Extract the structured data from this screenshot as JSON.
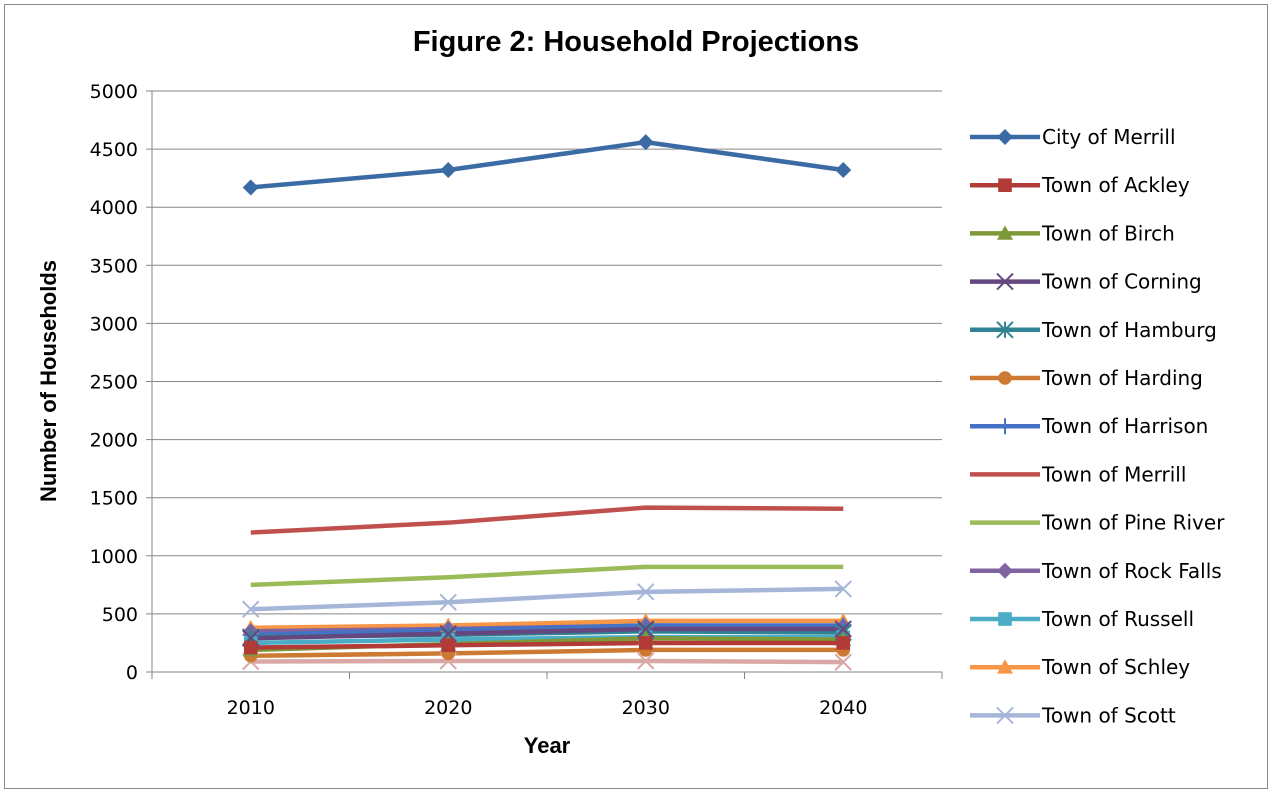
{
  "chart_data": {
    "type": "line",
    "title": "Figure 2:  Household Projections",
    "xlabel": "Year",
    "ylabel": "Number of Households",
    "categories": [
      "2010",
      "2020",
      "2030",
      "2040"
    ],
    "ylim": [
      0,
      5000
    ],
    "yticks": [
      0,
      500,
      1000,
      1500,
      2000,
      2500,
      3000,
      3500,
      4000,
      4500,
      5000
    ],
    "grid": "horizontal",
    "legend_position": "right",
    "series": [
      {
        "name": "City of Merrill",
        "values": [
          4170,
          4320,
          4560,
          4320
        ],
        "color": "#3A6BA5",
        "marker": "diamond"
      },
      {
        "name": "Town of Ackley",
        "values": [
          210,
          230,
          250,
          250
        ],
        "color": "#B23B38",
        "marker": "square"
      },
      {
        "name": "Town of Birch",
        "values": [
          190,
          240,
          290,
          280
        ],
        "color": "#7E9A38",
        "marker": "triangle"
      },
      {
        "name": "Town of Corning",
        "values": [
          290,
          330,
          370,
          370
        ],
        "color": "#63477E",
        "marker": "x"
      },
      {
        "name": "Town of Hamburg",
        "values": [
          300,
          320,
          350,
          340
        ],
        "color": "#2F8393",
        "marker": "star"
      },
      {
        "name": "Town of Harding",
        "values": [
          140,
          160,
          190,
          190
        ],
        "color": "#CC7A31",
        "marker": "circle"
      },
      {
        "name": "Town of Harrison",
        "values": [
          320,
          360,
          400,
          400
        ],
        "color": "#4472C4",
        "marker": "plus"
      },
      {
        "name": "Town of Merrill",
        "values": [
          1200,
          1285,
          1415,
          1405
        ],
        "color": "#C0504D",
        "marker": "dash"
      },
      {
        "name": "Town of Pine River",
        "values": [
          750,
          815,
          905,
          905
        ],
        "color": "#9BBB59",
        "marker": "dash"
      },
      {
        "name": "Town of Rock Falls",
        "values": [
          350,
          370,
          400,
          395
        ],
        "color": "#8064A2",
        "marker": "diamond"
      },
      {
        "name": "Town of Russell",
        "values": [
          250,
          280,
          300,
          300
        ],
        "color": "#4BACC6",
        "marker": "square"
      },
      {
        "name": "Town of Schley",
        "values": [
          380,
          400,
          440,
          440
        ],
        "color": "#F79646",
        "marker": "triangle"
      },
      {
        "name": "Town of Scott",
        "values": [
          540,
          600,
          690,
          715
        ],
        "color": "#A5B6D8",
        "marker": "x"
      },
      {
        "name": "",
        "values": [
          90,
          95,
          95,
          85
        ],
        "color": "#D9A8A6",
        "marker": "x",
        "in_legend": false
      }
    ]
  }
}
